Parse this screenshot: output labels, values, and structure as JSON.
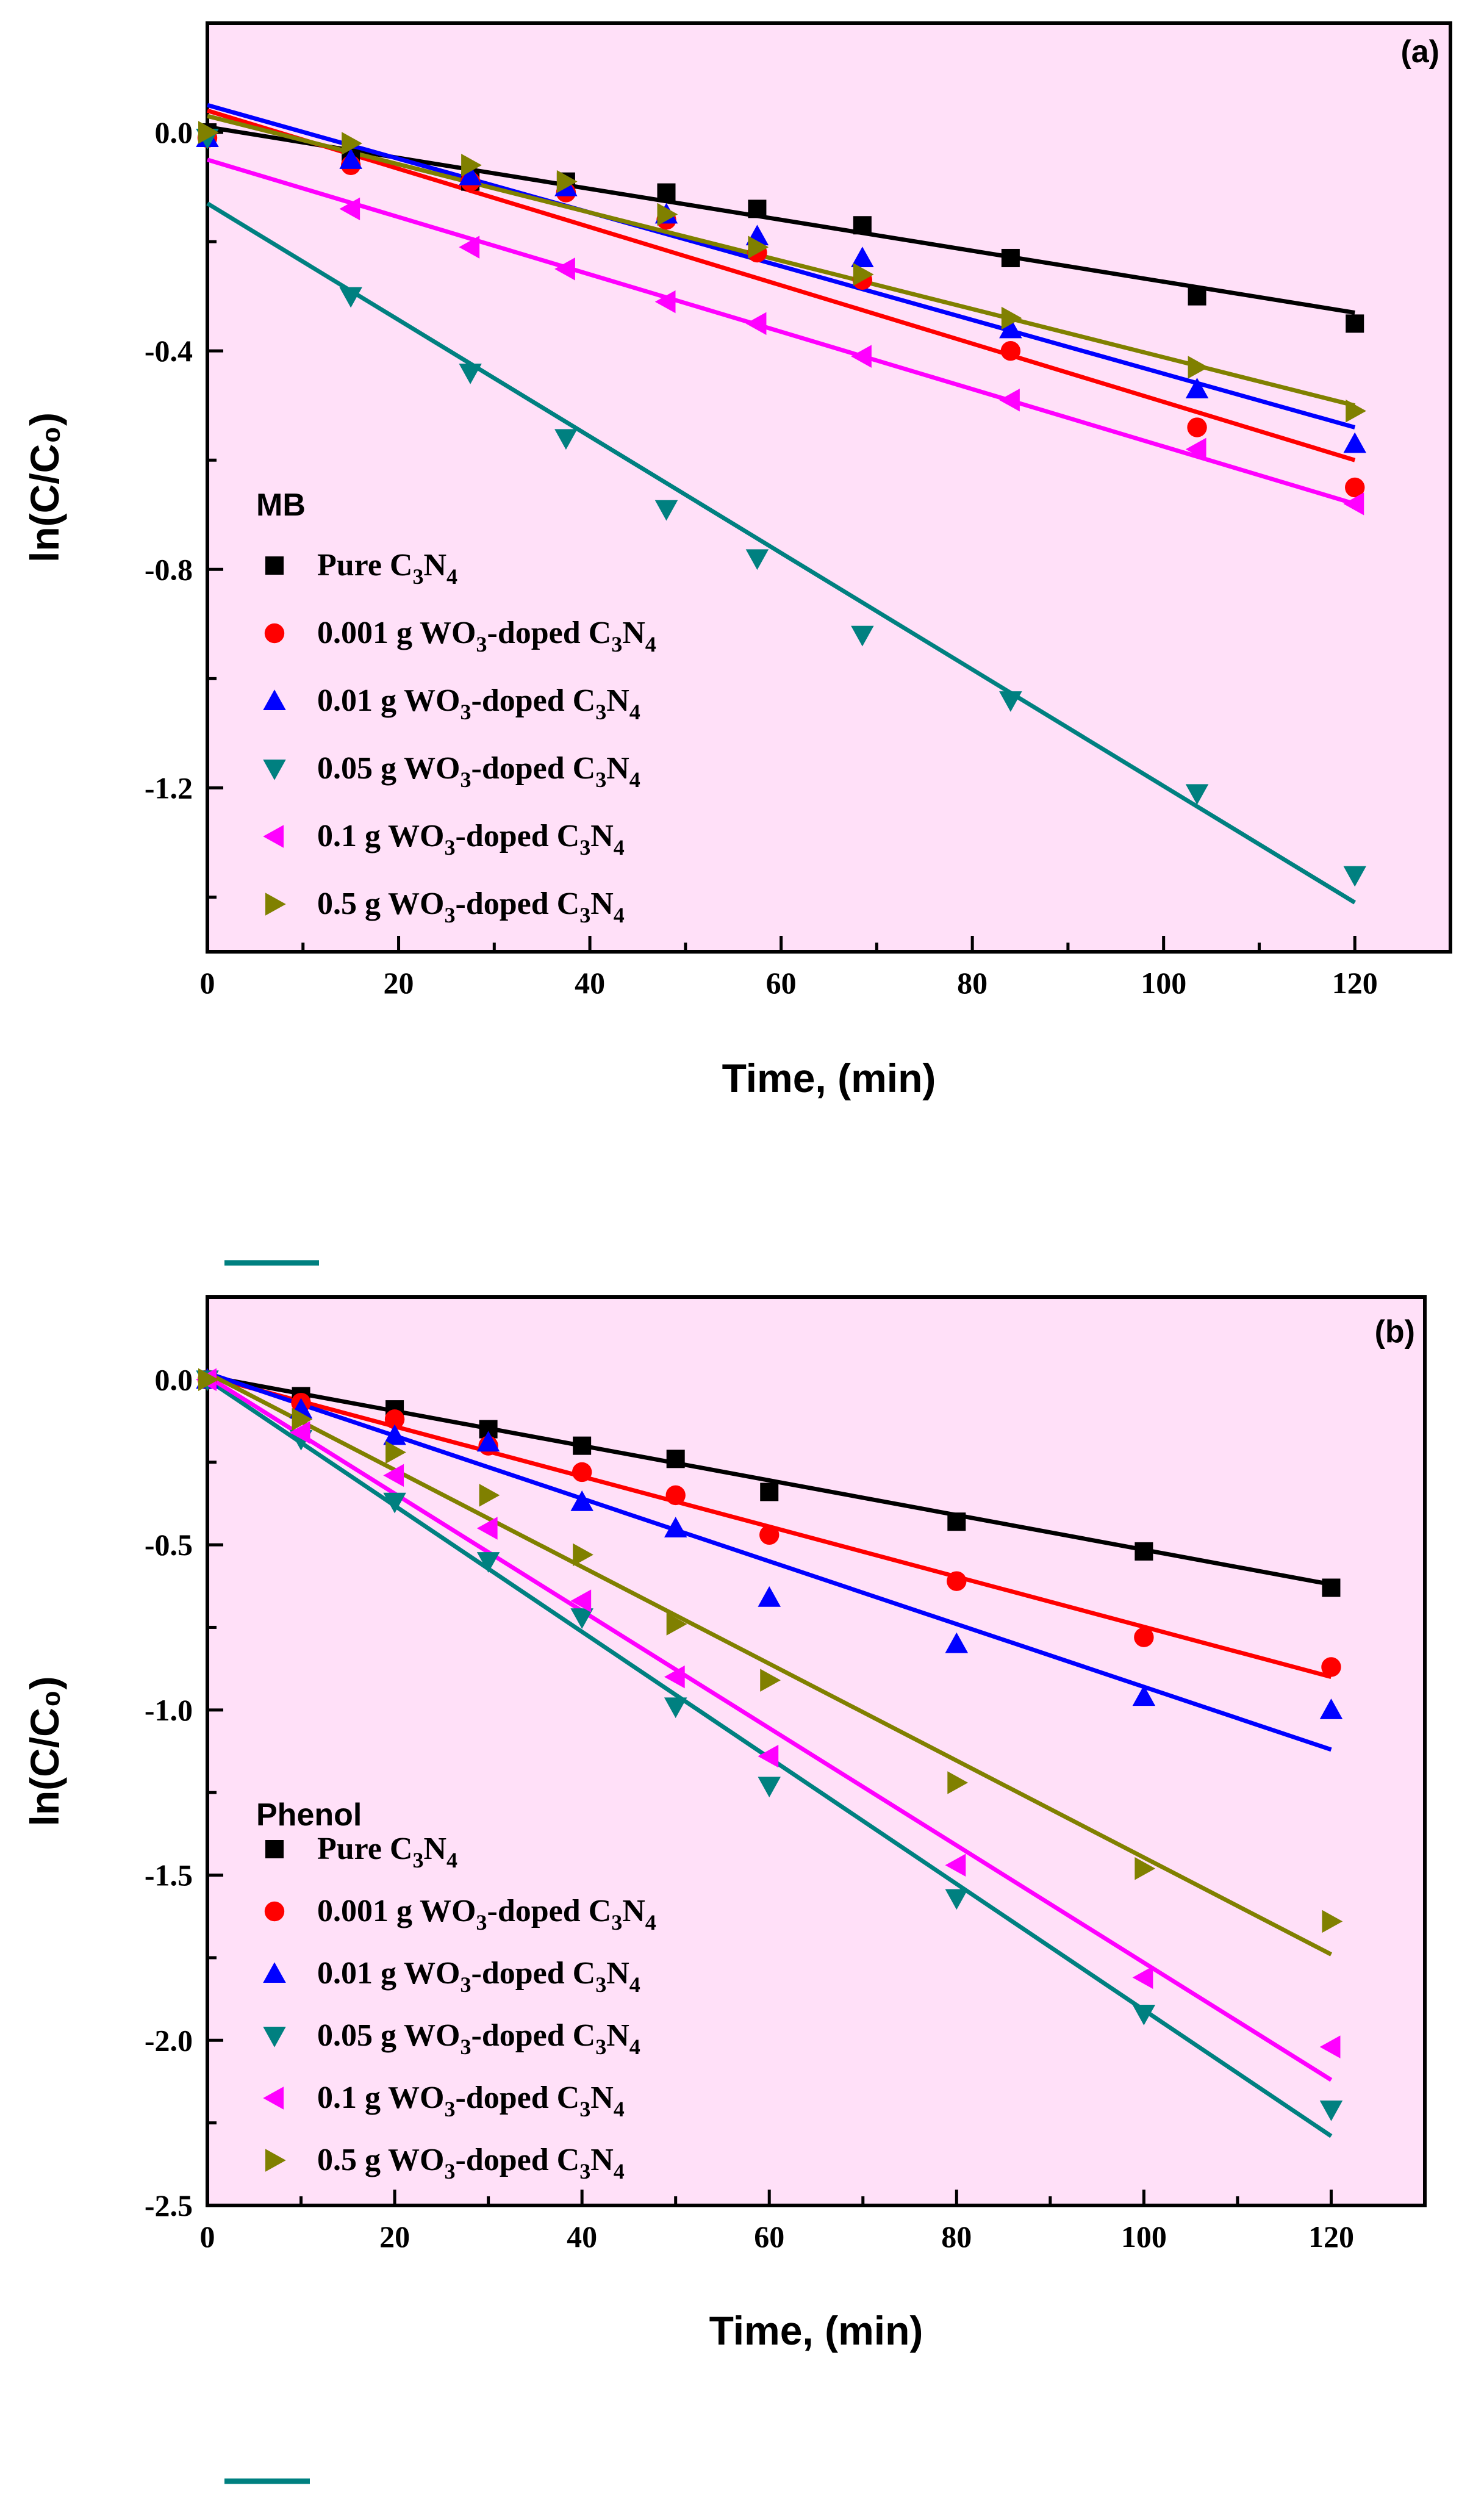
{
  "chart_data": [
    {
      "type": "scatter",
      "panel_label": "(a)",
      "legend_title": "MB",
      "xlabel": "Time, (min)",
      "ylabel": "ln(C/C₀)",
      "xlim": [
        0,
        130
      ],
      "ylim": [
        -1.5,
        0.2
      ],
      "x_ticks": [
        0,
        20,
        40,
        60,
        80,
        100,
        120
      ],
      "y_ticks": [
        0.0,
        -0.4,
        -0.8,
        -1.2
      ],
      "y_tick_labels": [
        "0.0",
        "-0.4",
        "-0.8",
        "-1.2"
      ],
      "legend_placement": "bottom-left",
      "series": [
        {
          "name": "Pure C3N4",
          "label_parts": [
            [
              "Pure C",
              "n"
            ],
            [
              "3",
              "s"
            ],
            [
              "N",
              "n"
            ],
            [
              "4",
              "s"
            ]
          ],
          "color": "#000000",
          "marker": "square",
          "x": [
            0,
            15,
            27.5,
            37.5,
            48,
            57.5,
            68.5,
            84,
            103.5,
            120
          ],
          "y": [
            0.0,
            -0.05,
            -0.09,
            -0.09,
            -0.11,
            -0.14,
            -0.17,
            -0.23,
            -0.3,
            -0.35
          ],
          "fit": [
            0.01,
            -0.33
          ]
        },
        {
          "name": "0.001 g WO3-doped C3N4",
          "label_parts": [
            [
              "0.001 g WO",
              "n"
            ],
            [
              "3",
              "s"
            ],
            [
              "-doped C",
              "n"
            ],
            [
              "3",
              "s"
            ],
            [
              "N",
              "n"
            ],
            [
              "4",
              "s"
            ]
          ],
          "color": "#ff0000",
          "marker": "circle",
          "x": [
            0,
            15,
            27.5,
            37.5,
            48,
            57.5,
            68.5,
            84,
            103.5,
            120
          ],
          "y": [
            -0.01,
            -0.06,
            -0.09,
            -0.11,
            -0.16,
            -0.22,
            -0.27,
            -0.4,
            -0.54,
            -0.65
          ],
          "fit": [
            0.04,
            -0.6
          ]
        },
        {
          "name": "0.01 g WO3-doped C3N4",
          "label_parts": [
            [
              "0.01   g WO",
              "n"
            ],
            [
              "3",
              "s"
            ],
            [
              "-doped C",
              "n"
            ],
            [
              "3",
              "s"
            ],
            [
              "N",
              "n"
            ],
            [
              "4",
              "s"
            ]
          ],
          "color": "#0000ff",
          "marker": "triangle-up",
          "x": [
            0,
            15,
            27.5,
            37.5,
            48,
            57.5,
            68.5,
            84,
            103.5,
            120
          ],
          "y": [
            -0.01,
            -0.05,
            -0.08,
            -0.1,
            -0.15,
            -0.19,
            -0.23,
            -0.36,
            -0.47,
            -0.57
          ],
          "fit": [
            0.05,
            -0.54
          ]
        },
        {
          "name": "0.05 g WO3-doped C3N4",
          "label_parts": [
            [
              "0.05   g WO",
              "n"
            ],
            [
              "3",
              "s"
            ],
            [
              "-doped C",
              "n"
            ],
            [
              "3",
              "s"
            ],
            [
              "N",
              "n"
            ],
            [
              "4",
              "s"
            ]
          ],
          "color": "#008080",
          "marker": "triangle-down",
          "x": [
            0,
            15,
            27.5,
            37.5,
            48,
            57.5,
            68.5,
            84,
            103.5,
            120
          ],
          "y": [
            -0.01,
            -0.3,
            -0.44,
            -0.56,
            -0.69,
            -0.78,
            -0.92,
            -1.04,
            -1.21,
            -1.36
          ],
          "fit": [
            -0.13,
            -1.41
          ]
        },
        {
          "name": "0.1 g WO3-doped C3N4",
          "label_parts": [
            [
              "0.1      g WO",
              "n"
            ],
            [
              "3",
              "s"
            ],
            [
              "-doped C",
              "n"
            ],
            [
              "3",
              "s"
            ],
            [
              "N",
              "n"
            ],
            [
              "4",
              "s"
            ]
          ],
          "color": "#ff00ff",
          "marker": "triangle-left",
          "x": [
            15,
            27.5,
            37.5,
            48,
            57.5,
            68.5,
            84,
            103.5,
            120
          ],
          "y": [
            -0.14,
            -0.21,
            -0.25,
            -0.31,
            -0.35,
            -0.41,
            -0.49,
            -0.58,
            -0.68
          ],
          "fit": [
            -0.05,
            -0.68
          ]
        },
        {
          "name": "0.5 g WO3-doped C3N4",
          "label_parts": [
            [
              "0.5      g WO",
              "n"
            ],
            [
              "3",
              "s"
            ],
            [
              "-doped C",
              "n"
            ],
            [
              "3",
              "s"
            ],
            [
              "N",
              "n"
            ],
            [
              "4",
              "s"
            ]
          ],
          "color": "#808000",
          "marker": "triangle-right",
          "x": [
            0,
            15,
            27.5,
            37.5,
            48,
            57.5,
            68.5,
            84,
            103.5,
            120
          ],
          "y": [
            0.0,
            -0.02,
            -0.06,
            -0.09,
            -0.15,
            -0.21,
            -0.26,
            -0.34,
            -0.43,
            -0.51
          ],
          "fit": [
            0.03,
            -0.5
          ]
        }
      ]
    },
    {
      "type": "scatter",
      "panel_label": "(b)",
      "legend_title": "Phenol",
      "xlabel": "Time, (min)",
      "ylabel": "ln(C/C₀)",
      "xlim": [
        0,
        130
      ],
      "ylim": [
        -2.5,
        0.25
      ],
      "x_ticks": [
        0,
        20,
        40,
        60,
        80,
        100,
        120
      ],
      "y_ticks": [
        0.0,
        -0.5,
        -1.0,
        -1.5,
        -2.0,
        -2.5
      ],
      "y_tick_labels": [
        "0.0",
        "-0.5",
        "-1.0",
        "-1.5",
        "-2.0",
        "-2.5"
      ],
      "legend_placement": "bottom-left",
      "series": [
        {
          "name": "Pure C3N4",
          "label_parts": [
            [
              "Pure C",
              "n"
            ],
            [
              "3",
              "s"
            ],
            [
              "N",
              "n"
            ],
            [
              "4",
              "s"
            ]
          ],
          "color": "#000000",
          "marker": "square",
          "x": [
            0,
            10,
            20,
            30,
            40,
            50,
            60,
            80,
            100,
            120
          ],
          "y": [
            0.0,
            -0.05,
            -0.09,
            -0.15,
            -0.2,
            -0.24,
            -0.34,
            -0.43,
            -0.52,
            -0.63
          ],
          "fit": [
            0.01,
            -0.62
          ]
        },
        {
          "name": "0.001 g WO3-doped C3N4",
          "label_parts": [
            [
              "0.001 g WO",
              "n"
            ],
            [
              "3",
              "s"
            ],
            [
              "-doped C",
              "n"
            ],
            [
              "3",
              "s"
            ],
            [
              "N",
              "n"
            ],
            [
              "4",
              "s"
            ]
          ],
          "color": "#ff0000",
          "marker": "circle",
          "x": [
            0,
            10,
            20,
            30,
            40,
            50,
            60,
            80,
            100,
            120
          ],
          "y": [
            0.0,
            -0.07,
            -0.12,
            -0.2,
            -0.28,
            -0.35,
            -0.47,
            -0.61,
            -0.78,
            -0.87
          ],
          "fit": [
            0.01,
            -0.9
          ]
        },
        {
          "name": "0.01 g WO3-doped C3N4",
          "label_parts": [
            [
              "0.01   g WO",
              "n"
            ],
            [
              "3",
              "s"
            ],
            [
              "-doped C",
              "n"
            ],
            [
              "3",
              "s"
            ],
            [
              "N",
              "n"
            ],
            [
              "4",
              "s"
            ]
          ],
          "color": "#0000ff",
          "marker": "triangle-up",
          "x": [
            0,
            10,
            20,
            30,
            40,
            50,
            60,
            80,
            100,
            120
          ],
          "y": [
            0.0,
            -0.09,
            -0.17,
            -0.19,
            -0.37,
            -0.45,
            -0.66,
            -0.8,
            -0.96,
            -1.0
          ],
          "fit": [
            0.02,
            -1.12
          ]
        },
        {
          "name": "0.05 g WO3-doped C3N4",
          "label_parts": [
            [
              "0.05   g WO",
              "n"
            ],
            [
              "3",
              "s"
            ],
            [
              "-doped C",
              "n"
            ],
            [
              "3",
              "s"
            ],
            [
              "N",
              "n"
            ],
            [
              "4",
              "s"
            ]
          ],
          "color": "#008080",
          "marker": "triangle-down",
          "x": [
            0,
            10,
            20,
            30,
            40,
            50,
            60,
            80,
            100,
            120
          ],
          "y": [
            0.0,
            -0.18,
            -0.37,
            -0.55,
            -0.72,
            -0.99,
            -1.23,
            -1.57,
            -1.92,
            -2.21
          ],
          "fit": [
            0.0,
            -2.29
          ]
        },
        {
          "name": "0.1 g WO3-doped C3N4",
          "label_parts": [
            [
              "0.1      g WO",
              "n"
            ],
            [
              "3",
              "s"
            ],
            [
              "-doped C",
              "n"
            ],
            [
              "3",
              "s"
            ],
            [
              "N",
              "n"
            ],
            [
              "4",
              "s"
            ]
          ],
          "color": "#ff00ff",
          "marker": "triangle-left",
          "x": [
            0,
            10,
            20,
            30,
            40,
            50,
            60,
            80,
            100,
            120
          ],
          "y": [
            0.0,
            -0.16,
            -0.29,
            -0.45,
            -0.67,
            -0.9,
            -1.14,
            -1.47,
            -1.81,
            -2.02
          ],
          "fit": [
            0.01,
            -2.12
          ]
        },
        {
          "name": "0.5 g WO3-doped C3N4",
          "label_parts": [
            [
              "0.5      g WO",
              "n"
            ],
            [
              "3",
              "s"
            ],
            [
              "-doped C",
              "n"
            ],
            [
              "3",
              "s"
            ],
            [
              "N",
              "n"
            ],
            [
              "4",
              "s"
            ]
          ],
          "color": "#808000",
          "marker": "triangle-right",
          "x": [
            0,
            10,
            20,
            30,
            40,
            50,
            60,
            80,
            100,
            120
          ],
          "y": [
            0.0,
            -0.12,
            -0.22,
            -0.35,
            -0.53,
            -0.74,
            -0.91,
            -1.22,
            -1.48,
            -1.64
          ],
          "fit": [
            0.02,
            -1.74
          ]
        }
      ]
    }
  ],
  "colors": {
    "plot_background": "#ffe0f8",
    "axis": "#000000",
    "stray_mark": "#008080"
  }
}
